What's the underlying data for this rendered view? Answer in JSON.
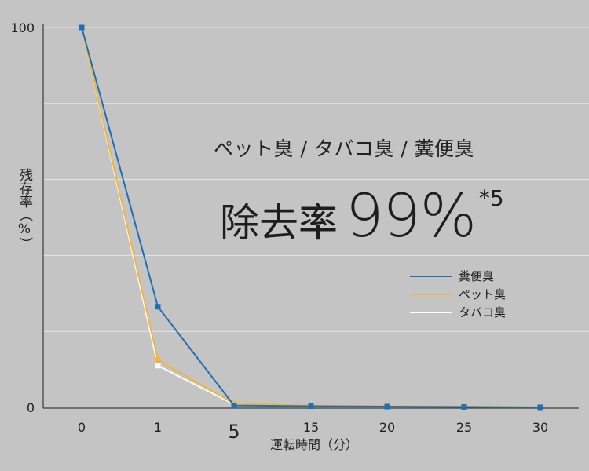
{
  "chart_data": {
    "type": "line",
    "title": "ペット臭 / タバコ臭 / 糞便臭",
    "headline": {
      "label": "除去率",
      "value": "99%",
      "note": "*5"
    },
    "xlabel": "運転時間（分）",
    "ylabel": "残存率（%）",
    "categories": [
      "0",
      "1",
      "5",
      "15",
      "20",
      "25",
      "30"
    ],
    "y_ticks": [
      "0",
      "100"
    ],
    "ylim": [
      0,
      100
    ],
    "grid": true,
    "legend_position": "right",
    "series": [
      {
        "name": "タバコ臭",
        "color": "#ffffff",
        "values": [
          100,
          11,
          0.8,
          null,
          null,
          null,
          null
        ]
      },
      {
        "name": "ペット臭",
        "color": "#f2b53a",
        "values": [
          100,
          12.5,
          1,
          0.5,
          0.3,
          0.2,
          0.1
        ]
      },
      {
        "name": "糞便臭",
        "color": "#1f6fb5",
        "values": [
          100,
          26.5,
          0.5,
          0.3,
          0.2,
          0.1,
          0
        ]
      }
    ],
    "legend_order": [
      "糞便臭",
      "ペット臭",
      "タバコ臭"
    ]
  }
}
